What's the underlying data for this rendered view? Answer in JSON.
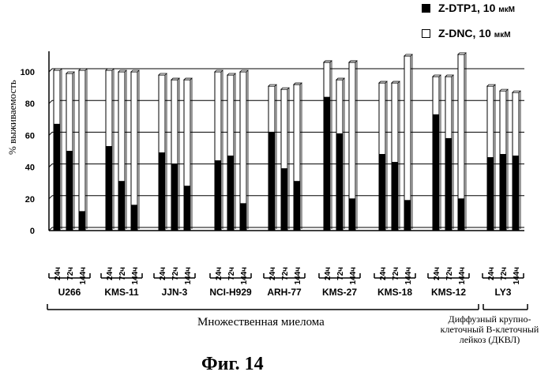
{
  "legend": [
    {
      "name": "Z-DTP1, 10",
      "unit": "мкМ",
      "color": "#000000"
    },
    {
      "name": "Z-DNC, 10",
      "unit": "мкМ",
      "color": "#ffffff"
    }
  ],
  "y_axis_label": "% выживаемость",
  "group_labels": {
    "mm": "Множественная миелома",
    "dlbcl_line1": "Диффузный крупно-",
    "dlbcl_line2": "клеточный В-клеточный",
    "dlbcl_line3": "лейкоз (ДКВЛ)"
  },
  "figure_caption": "Фиг.  14",
  "chart_data": {
    "type": "bar",
    "stacked": true,
    "ylim": [
      0,
      110
    ],
    "yticks": [
      0,
      20,
      40,
      60,
      80,
      100
    ],
    "grid": true,
    "time_labels": [
      "24ч",
      "72ч",
      "144ч"
    ],
    "cell_lines": [
      {
        "name": "U266",
        "dtp1": [
          67,
          50,
          12
        ],
        "dnc": [
          101,
          99,
          101
        ]
      },
      {
        "name": "KMS-11",
        "dtp1": [
          53,
          31,
          16
        ],
        "dnc": [
          101,
          100,
          100
        ]
      },
      {
        "name": "JJN-3",
        "dtp1": [
          49,
          42,
          28
        ],
        "dnc": [
          98,
          95,
          95
        ]
      },
      {
        "name": "NCI-H929",
        "dtp1": [
          44,
          47,
          17
        ],
        "dnc": [
          100,
          98,
          100
        ]
      },
      {
        "name": "ARH-77",
        "dtp1": [
          62,
          39,
          31
        ],
        "dnc": [
          91,
          89,
          92
        ]
      },
      {
        "name": "KMS-27",
        "dtp1": [
          84,
          61,
          20
        ],
        "dnc": [
          106,
          95,
          106
        ]
      },
      {
        "name": "KMS-18",
        "dtp1": [
          48,
          43,
          19
        ],
        "dnc": [
          93,
          93,
          110
        ]
      },
      {
        "name": "KMS-12",
        "dtp1": [
          73,
          58,
          20
        ],
        "dnc": [
          97,
          97,
          111
        ]
      },
      {
        "name": "LY3",
        "dtp1": [
          46,
          48,
          47
        ],
        "dnc": [
          91,
          88,
          87
        ]
      }
    ],
    "series": [
      {
        "name": "Z-DTP1, 10 мкМ"
      },
      {
        "name": "Z-DNC, 10 мкМ"
      }
    ]
  }
}
